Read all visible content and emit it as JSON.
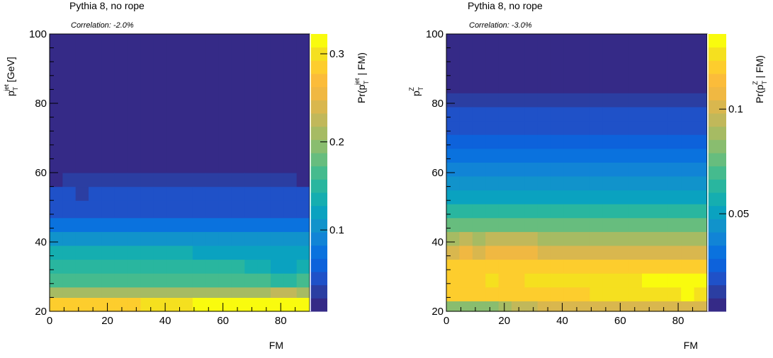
{
  "chart_data": [
    {
      "type": "heatmap",
      "title": "Pythia 8, no rope",
      "subtitle": "Correlation: -2.0%",
      "xlabel": "FM",
      "ylabel": "p_T^jet [GeV]",
      "ylabel_main": "p",
      "ylabel_sub": "T",
      "ylabel_sup": "jet",
      "ylabel_tail": "[GeV]",
      "zlabel_head": "Pr(p",
      "zlabel_sub": "T",
      "zlabel_sup": "jet",
      "zlabel_tail": "| FM)",
      "xlim": [
        0,
        90
      ],
      "ylim": [
        20,
        100
      ],
      "x_ticks": [
        "0",
        "20",
        "40",
        "60",
        "80"
      ],
      "y_ticks": [
        "20",
        "40",
        "60",
        "80",
        "100"
      ],
      "z_range": [
        0.0077,
        0.3225
      ],
      "z_ticks": [
        "0.1",
        "0.2",
        "0.3"
      ],
      "z_tick_values": [
        0.1,
        0.2,
        0.3
      ],
      "x_bins": 20,
      "y_bin_edges": [
        20,
        24,
        27,
        31,
        35,
        39,
        43,
        47,
        52,
        56,
        60,
        100
      ],
      "columns": [
        {
          "x": [
            0,
            4.5
          ],
          "z": [
            0.29,
            0.21,
            0.16,
            0.15,
            0.13,
            0.1,
            0.08,
            0.05,
            0.04,
            0.02,
            0.008
          ]
        },
        {
          "x": [
            4.5,
            9
          ],
          "z": [
            0.29,
            0.21,
            0.16,
            0.15,
            0.13,
            0.1,
            0.08,
            0.05,
            0.04,
            0.03,
            0.008
          ]
        },
        {
          "x": [
            9,
            13.5
          ],
          "z": [
            0.29,
            0.21,
            0.16,
            0.15,
            0.13,
            0.1,
            0.08,
            0.05,
            0.03,
            0.03,
            0.008
          ]
        },
        {
          "x": [
            13.5,
            18
          ],
          "z": [
            0.29,
            0.21,
            0.16,
            0.15,
            0.13,
            0.1,
            0.08,
            0.05,
            0.04,
            0.03,
            0.008
          ]
        },
        {
          "x": [
            18,
            22.5
          ],
          "z": [
            0.29,
            0.21,
            0.16,
            0.15,
            0.13,
            0.1,
            0.08,
            0.05,
            0.04,
            0.03,
            0.008
          ]
        },
        {
          "x": [
            22.5,
            27
          ],
          "z": [
            0.29,
            0.21,
            0.16,
            0.15,
            0.13,
            0.1,
            0.08,
            0.05,
            0.04,
            0.03,
            0.008
          ]
        },
        {
          "x": [
            27,
            31.5
          ],
          "z": [
            0.29,
            0.21,
            0.16,
            0.15,
            0.13,
            0.1,
            0.08,
            0.05,
            0.04,
            0.03,
            0.008
          ]
        },
        {
          "x": [
            31.5,
            36
          ],
          "z": [
            0.3,
            0.21,
            0.16,
            0.15,
            0.13,
            0.1,
            0.08,
            0.05,
            0.04,
            0.03,
            0.008
          ]
        },
        {
          "x": [
            36,
            40.5
          ],
          "z": [
            0.3,
            0.21,
            0.16,
            0.15,
            0.13,
            0.1,
            0.08,
            0.05,
            0.04,
            0.03,
            0.008
          ]
        },
        {
          "x": [
            40.5,
            45
          ],
          "z": [
            0.3,
            0.21,
            0.16,
            0.15,
            0.13,
            0.1,
            0.08,
            0.05,
            0.04,
            0.03,
            0.008
          ]
        },
        {
          "x": [
            45,
            49.5
          ],
          "z": [
            0.3,
            0.21,
            0.16,
            0.15,
            0.13,
            0.1,
            0.08,
            0.05,
            0.04,
            0.03,
            0.008
          ]
        },
        {
          "x": [
            49.5,
            54
          ],
          "z": [
            0.31,
            0.21,
            0.16,
            0.15,
            0.12,
            0.1,
            0.08,
            0.05,
            0.04,
            0.03,
            0.008
          ]
        },
        {
          "x": [
            54,
            58.5
          ],
          "z": [
            0.31,
            0.21,
            0.16,
            0.15,
            0.12,
            0.1,
            0.08,
            0.05,
            0.04,
            0.03,
            0.008
          ]
        },
        {
          "x": [
            58.5,
            63
          ],
          "z": [
            0.31,
            0.21,
            0.16,
            0.15,
            0.12,
            0.1,
            0.08,
            0.05,
            0.04,
            0.03,
            0.008
          ]
        },
        {
          "x": [
            63,
            67.5
          ],
          "z": [
            0.31,
            0.21,
            0.16,
            0.15,
            0.12,
            0.1,
            0.08,
            0.05,
            0.04,
            0.03,
            0.008
          ]
        },
        {
          "x": [
            67.5,
            72
          ],
          "z": [
            0.31,
            0.21,
            0.16,
            0.14,
            0.12,
            0.1,
            0.08,
            0.05,
            0.04,
            0.03,
            0.008
          ]
        },
        {
          "x": [
            72,
            76.5
          ],
          "z": [
            0.31,
            0.21,
            0.16,
            0.14,
            0.12,
            0.1,
            0.08,
            0.05,
            0.04,
            0.03,
            0.008
          ]
        },
        {
          "x": [
            76.5,
            81
          ],
          "z": [
            0.32,
            0.23,
            0.15,
            0.12,
            0.12,
            0.1,
            0.08,
            0.05,
            0.04,
            0.03,
            0.008
          ]
        },
        {
          "x": [
            81,
            85.5
          ],
          "z": [
            0.32,
            0.23,
            0.15,
            0.12,
            0.12,
            0.1,
            0.08,
            0.05,
            0.04,
            0.03,
            0.008
          ]
        },
        {
          "x": [
            85.5,
            90
          ],
          "z": [
            0.32,
            0.21,
            0.16,
            0.14,
            0.12,
            0.1,
            0.08,
            0.05,
            0.04,
            0.02,
            0.008
          ]
        }
      ]
    },
    {
      "type": "heatmap",
      "title": "Pythia 8, no rope",
      "subtitle": "Correlation: -3.0%",
      "xlabel": "FM",
      "ylabel": "p_T^Z",
      "ylabel_main": "p",
      "ylabel_sub": "T",
      "ylabel_sup": "Z",
      "ylabel_tail": "",
      "zlabel_head": "Pr(p",
      "zlabel_sub": "T",
      "zlabel_sup": "Z",
      "zlabel_tail": "| FM)",
      "xlim": [
        0,
        90
      ],
      "ylim": [
        20,
        100
      ],
      "x_ticks": [
        "0",
        "20",
        "40",
        "60",
        "80"
      ],
      "y_ticks": [
        "20",
        "40",
        "60",
        "80",
        "100"
      ],
      "z_range": [
        0.0034,
        0.1359
      ],
      "z_ticks": [
        "0.05",
        "0.1"
      ],
      "z_tick_values": [
        0.05,
        0.1
      ],
      "x_bins": 20,
      "y_bin_edges": [
        20,
        23,
        27,
        31,
        35,
        39,
        43,
        47,
        51,
        55,
        59,
        63,
        67,
        71,
        75,
        79,
        83,
        100
      ],
      "columns": [
        {
          "x": [
            0,
            4.5
          ],
          "z": [
            0.085,
            0.117,
            0.123,
            0.117,
            0.103,
            0.089,
            0.075,
            0.061,
            0.053,
            0.046,
            0.037,
            0.031,
            0.027,
            0.022,
            0.019,
            0.014,
            0.005
          ]
        },
        {
          "x": [
            4.5,
            9
          ],
          "z": [
            0.085,
            0.117,
            0.123,
            0.117,
            0.108,
            0.093,
            0.078,
            0.061,
            0.053,
            0.046,
            0.037,
            0.031,
            0.027,
            0.022,
            0.019,
            0.014,
            0.005
          ]
        },
        {
          "x": [
            9,
            13.5
          ],
          "z": [
            0.085,
            0.117,
            0.123,
            0.117,
            0.103,
            0.089,
            0.075,
            0.061,
            0.053,
            0.046,
            0.037,
            0.031,
            0.027,
            0.022,
            0.019,
            0.014,
            0.005
          ]
        },
        {
          "x": [
            13.5,
            18
          ],
          "z": [
            0.085,
            0.117,
            0.126,
            0.12,
            0.108,
            0.093,
            0.075,
            0.061,
            0.053,
            0.046,
            0.037,
            0.031,
            0.027,
            0.022,
            0.019,
            0.014,
            0.005
          ]
        },
        {
          "x": [
            18,
            22.5
          ],
          "z": [
            0.089,
            0.117,
            0.123,
            0.117,
            0.108,
            0.093,
            0.075,
            0.061,
            0.053,
            0.046,
            0.037,
            0.031,
            0.027,
            0.022,
            0.019,
            0.014,
            0.005
          ]
        },
        {
          "x": [
            22.5,
            27
          ],
          "z": [
            0.094,
            0.121,
            0.123,
            0.117,
            0.108,
            0.093,
            0.075,
            0.061,
            0.053,
            0.046,
            0.037,
            0.031,
            0.027,
            0.022,
            0.019,
            0.014,
            0.005
          ]
        },
        {
          "x": [
            27,
            31.5
          ],
          "z": [
            0.094,
            0.121,
            0.126,
            0.12,
            0.108,
            0.093,
            0.075,
            0.061,
            0.053,
            0.046,
            0.037,
            0.031,
            0.027,
            0.022,
            0.019,
            0.014,
            0.005
          ]
        },
        {
          "x": [
            31.5,
            36
          ],
          "z": [
            0.099,
            0.121,
            0.126,
            0.12,
            0.103,
            0.089,
            0.075,
            0.061,
            0.053,
            0.046,
            0.037,
            0.031,
            0.027,
            0.022,
            0.019,
            0.014,
            0.005
          ]
        },
        {
          "x": [
            36,
            40.5
          ],
          "z": [
            0.099,
            0.121,
            0.126,
            0.12,
            0.103,
            0.089,
            0.075,
            0.061,
            0.053,
            0.046,
            0.037,
            0.031,
            0.027,
            0.022,
            0.019,
            0.014,
            0.005
          ]
        },
        {
          "x": [
            40.5,
            45
          ],
          "z": [
            0.099,
            0.121,
            0.126,
            0.12,
            0.103,
            0.089,
            0.075,
            0.061,
            0.053,
            0.046,
            0.037,
            0.031,
            0.027,
            0.022,
            0.019,
            0.014,
            0.005
          ]
        },
        {
          "x": [
            45,
            49.5
          ],
          "z": [
            0.099,
            0.121,
            0.126,
            0.12,
            0.103,
            0.089,
            0.075,
            0.061,
            0.053,
            0.046,
            0.037,
            0.031,
            0.027,
            0.022,
            0.019,
            0.014,
            0.005
          ]
        },
        {
          "x": [
            49.5,
            54
          ],
          "z": [
            0.099,
            0.127,
            0.126,
            0.12,
            0.103,
            0.089,
            0.075,
            0.061,
            0.053,
            0.046,
            0.037,
            0.031,
            0.027,
            0.022,
            0.019,
            0.014,
            0.005
          ]
        },
        {
          "x": [
            54,
            58.5
          ],
          "z": [
            0.099,
            0.127,
            0.126,
            0.12,
            0.103,
            0.089,
            0.075,
            0.061,
            0.053,
            0.046,
            0.037,
            0.031,
            0.027,
            0.022,
            0.019,
            0.014,
            0.005
          ]
        },
        {
          "x": [
            58.5,
            63
          ],
          "z": [
            0.099,
            0.127,
            0.126,
            0.12,
            0.103,
            0.089,
            0.075,
            0.061,
            0.053,
            0.046,
            0.037,
            0.031,
            0.027,
            0.022,
            0.019,
            0.014,
            0.005
          ]
        },
        {
          "x": [
            63,
            67.5
          ],
          "z": [
            0.099,
            0.127,
            0.126,
            0.12,
            0.103,
            0.089,
            0.075,
            0.061,
            0.053,
            0.046,
            0.037,
            0.031,
            0.027,
            0.022,
            0.019,
            0.014,
            0.005
          ]
        },
        {
          "x": [
            67.5,
            72
          ],
          "z": [
            0.099,
            0.127,
            0.13,
            0.12,
            0.103,
            0.089,
            0.075,
            0.061,
            0.053,
            0.046,
            0.037,
            0.031,
            0.027,
            0.022,
            0.019,
            0.014,
            0.005
          ]
        },
        {
          "x": [
            72,
            76.5
          ],
          "z": [
            0.103,
            0.127,
            0.13,
            0.12,
            0.103,
            0.089,
            0.075,
            0.061,
            0.053,
            0.046,
            0.037,
            0.031,
            0.027,
            0.022,
            0.019,
            0.014,
            0.005
          ]
        },
        {
          "x": [
            76.5,
            81
          ],
          "z": [
            0.103,
            0.127,
            0.13,
            0.12,
            0.103,
            0.089,
            0.075,
            0.061,
            0.053,
            0.046,
            0.037,
            0.031,
            0.027,
            0.022,
            0.019,
            0.014,
            0.005
          ]
        },
        {
          "x": [
            81,
            85.5
          ],
          "z": [
            0.103,
            0.132,
            0.13,
            0.12,
            0.103,
            0.089,
            0.075,
            0.061,
            0.053,
            0.046,
            0.037,
            0.031,
            0.027,
            0.022,
            0.019,
            0.014,
            0.005
          ]
        },
        {
          "x": [
            85.5,
            90
          ],
          "z": [
            0.103,
            0.127,
            0.13,
            0.12,
            0.103,
            0.089,
            0.075,
            0.061,
            0.053,
            0.046,
            0.037,
            0.031,
            0.027,
            0.022,
            0.019,
            0.014,
            0.005
          ]
        }
      ]
    }
  ],
  "palette": [
    "#352a87",
    "#2b3ea2",
    "#1f51c8",
    "#0d62db",
    "#0a72de",
    "#1184d6",
    "#1193cb",
    "#0aa2c0",
    "#15aeb0",
    "#29b69f",
    "#45bb8e",
    "#67bd7e",
    "#89bd6f",
    "#a6bb63",
    "#c1b85a",
    "#d9b74e",
    "#f0b842",
    "#fbbc3a",
    "#fdcd2d",
    "#f5e01f",
    "#f9fb0e"
  ]
}
